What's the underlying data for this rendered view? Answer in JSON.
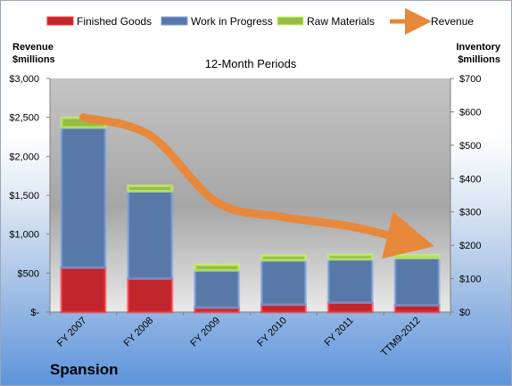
{
  "company": "Spansion",
  "chart_data": {
    "type": "bar",
    "stacked": true,
    "subtitle": "12-Month Periods",
    "left_axis": {
      "label_lines": [
        "Revenue",
        "$millions"
      ],
      "range": [
        0,
        3000
      ],
      "ticks": [
        0,
        500,
        1000,
        1500,
        2000,
        2500,
        3000
      ],
      "tick_labels": [
        "$-",
        "$500",
        "$1,000",
        "$1,500",
        "$2,000",
        "$2,500",
        "$3,000"
      ]
    },
    "right_axis": {
      "label_lines": [
        "Inventory",
        "$millions"
      ],
      "range": [
        0,
        700
      ],
      "ticks": [
        0,
        100,
        200,
        300,
        400,
        500,
        600,
        700
      ],
      "tick_labels": [
        "$0",
        "$100",
        "$200",
        "$300",
        "$400",
        "$500",
        "$600",
        "$700"
      ]
    },
    "categories": [
      "FY 2007",
      "FY 2008",
      "FY 2009",
      "FY 2010",
      "FY 2011",
      "TTM9-2012"
    ],
    "series": [
      {
        "name": "Finished Goods",
        "axis": "right",
        "color": "#c0262b",
        "values": [
          133,
          100,
          13,
          22,
          28,
          20
        ]
      },
      {
        "name": "Work in Progress",
        "axis": "right",
        "color": "#5878a8",
        "values": [
          420,
          262,
          112,
          133,
          130,
          142
        ]
      },
      {
        "name": "Raw Materials",
        "axis": "right",
        "color": "#96bb46",
        "values": [
          29,
          16,
          16,
          14,
          13,
          8
        ]
      }
    ],
    "line_series": {
      "name": "Revenue",
      "axis": "left",
      "color": "#e8883a",
      "values": [
        2500,
        2270,
        1410,
        1220,
        1100,
        900
      ]
    },
    "legend": {
      "position": "top"
    },
    "grid": false
  }
}
